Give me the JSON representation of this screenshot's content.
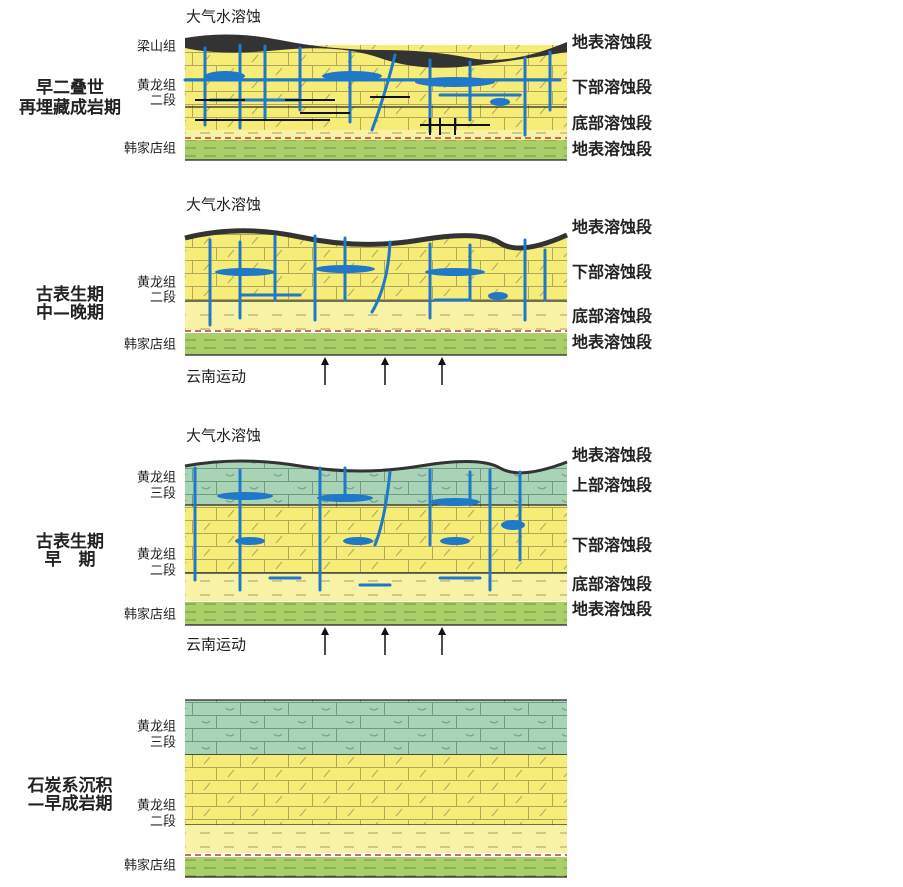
{
  "panels": [
    {
      "stage": [
        "早二叠世",
        "再埋藏成岩期"
      ],
      "top_label": "大气水溶蚀",
      "formations": [
        [
          "梁山组"
        ],
        [
          "黄龙组",
          "二段"
        ],
        [
          "韩家店组"
        ]
      ],
      "zones": [
        "地表溶蚀段",
        "下部溶蚀段",
        "底部溶蚀段",
        "地表溶蚀段"
      ]
    },
    {
      "stage": [
        "古表生期",
        "中—晚期"
      ],
      "top_label": "大气水溶蚀",
      "formations": [
        [
          "黄龙组",
          "二段"
        ],
        [
          "韩家店组"
        ]
      ],
      "zones": [
        "地表溶蚀段",
        "下部溶蚀段",
        "底部溶蚀段",
        "地表溶蚀段"
      ],
      "movement": "云南运动"
    },
    {
      "stage": [
        "古表生期",
        "早　期"
      ],
      "top_label": "大气水溶蚀",
      "formations": [
        [
          "黄龙组",
          "三段"
        ],
        [
          "黄龙组",
          "二段"
        ],
        [
          "韩家店组"
        ]
      ],
      "zones": [
        "地表溶蚀段",
        "上部溶蚀段",
        "下部溶蚀段",
        "底部溶蚀段",
        "地表溶蚀段"
      ],
      "movement": "云南运动"
    },
    {
      "stage": [
        "石炭系沉积",
        "—早成岩期"
      ],
      "formations": [
        [
          "黄龙组",
          "三段"
        ],
        [
          "黄龙组",
          "二段"
        ],
        [
          "韩家店组"
        ]
      ]
    }
  ]
}
